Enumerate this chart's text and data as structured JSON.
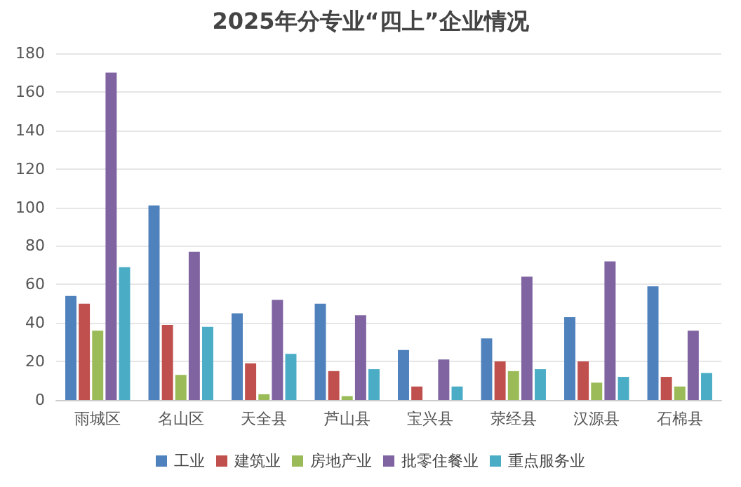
{
  "chart_data": {
    "type": "bar",
    "title": "2025年分专业“四上”企业情况",
    "categories": [
      "雨城区",
      "名山区",
      "天全县",
      "芦山县",
      "宝兴县",
      "荥经县",
      "汉源县",
      "石棉县"
    ],
    "series": [
      {
        "name": "工业",
        "color": "#4f81bd",
        "values": [
          54,
          101,
          45,
          50,
          26,
          32,
          43,
          59
        ]
      },
      {
        "name": "建筑业",
        "color": "#c0504d",
        "values": [
          50,
          39,
          19,
          15,
          7,
          20,
          20,
          12
        ]
      },
      {
        "name": "房地产业",
        "color": "#9bbb59",
        "values": [
          36,
          13,
          3,
          2,
          0,
          15,
          9,
          7
        ]
      },
      {
        "name": "批零住餐业",
        "color": "#8064a2",
        "values": [
          170,
          77,
          52,
          44,
          21,
          64,
          72,
          36
        ]
      },
      {
        "name": "重点服务业",
        "color": "#4bacc6",
        "values": [
          69,
          38,
          24,
          16,
          7,
          16,
          12,
          14
        ]
      }
    ],
    "ylim": [
      0,
      180
    ],
    "yticks": [
      0,
      20,
      40,
      60,
      80,
      100,
      120,
      140,
      160,
      180
    ],
    "grid": "y",
    "legend": "bottom"
  }
}
